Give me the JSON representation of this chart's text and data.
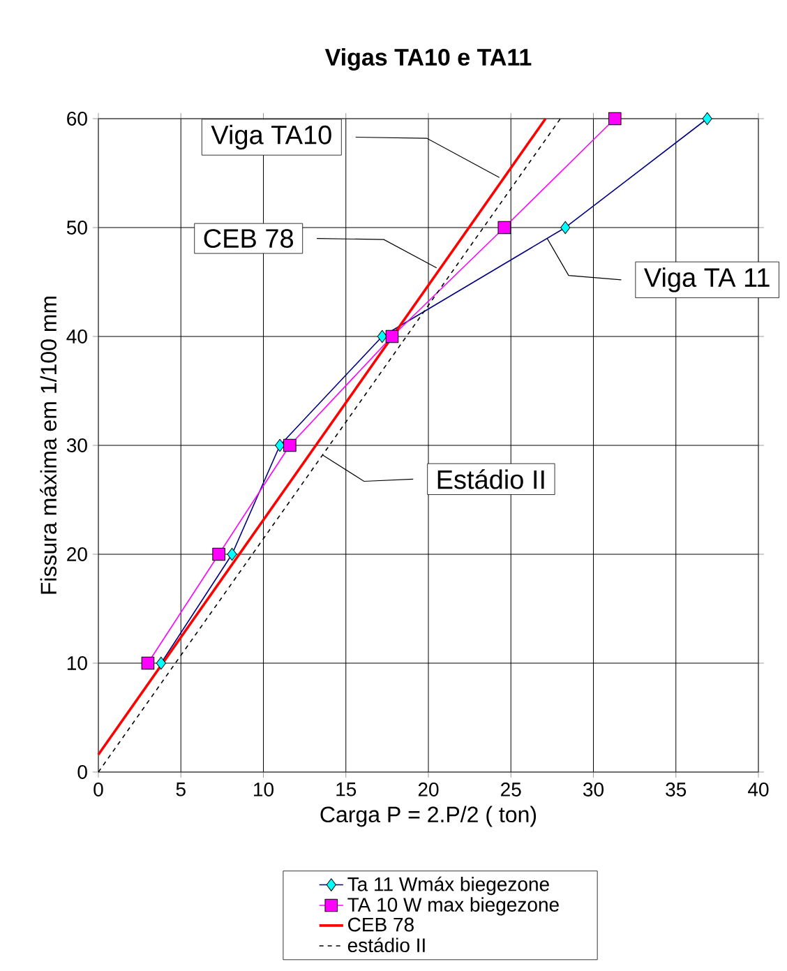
{
  "chart_data": {
    "type": "line",
    "title": "Vigas TA10 e TA11",
    "xlabel": "Carga P = 2.P/2 ( ton)",
    "ylabel": "Fissura máxima  em 1/100 mm",
    "xlim": [
      0,
      40
    ],
    "ylim": [
      0,
      60
    ],
    "xticks": [
      0,
      5,
      10,
      15,
      20,
      25,
      30,
      35,
      40
    ],
    "yticks": [
      0,
      10,
      20,
      30,
      40,
      50,
      60
    ],
    "grid": true,
    "legend": "bottom",
    "series": [
      {
        "name": "Ta 11 Wmáx biegezone",
        "color": "#000080",
        "marker": "diamond",
        "line_style": "solid",
        "x": [
          3.8,
          8.1,
          11.0,
          17.2,
          28.3,
          36.9
        ],
        "values": [
          10,
          20,
          30,
          40,
          50,
          60
        ]
      },
      {
        "name": "TA 10 W max biegezone",
        "color": "#ff00ff",
        "marker": "square",
        "line_style": "solid",
        "x": [
          3.0,
          7.3,
          11.6,
          17.8,
          24.6,
          31.3
        ],
        "values": [
          10,
          20,
          30,
          40,
          50,
          60
        ]
      },
      {
        "name": "CEB 78",
        "color": "#ff0000",
        "marker": "none",
        "line_style": "solid",
        "x": [
          0,
          27.1
        ],
        "values": [
          1.6,
          60
        ]
      },
      {
        "name": "estádio II",
        "color": "#000000",
        "marker": "none",
        "line_style": "dashed",
        "x": [
          0,
          28.0
        ],
        "values": [
          0,
          60
        ]
      }
    ],
    "annotations": [
      {
        "text": "Viga TA10",
        "x": 24.3,
        "y": 54.6
      },
      {
        "text": "CEB 78",
        "x": 20.5,
        "y": 46.3
      },
      {
        "text": "Viga TA 11",
        "x": 27.2,
        "y": 49.0
      },
      {
        "text": "Estádio II",
        "x": 13.6,
        "y": 29.1
      }
    ]
  }
}
